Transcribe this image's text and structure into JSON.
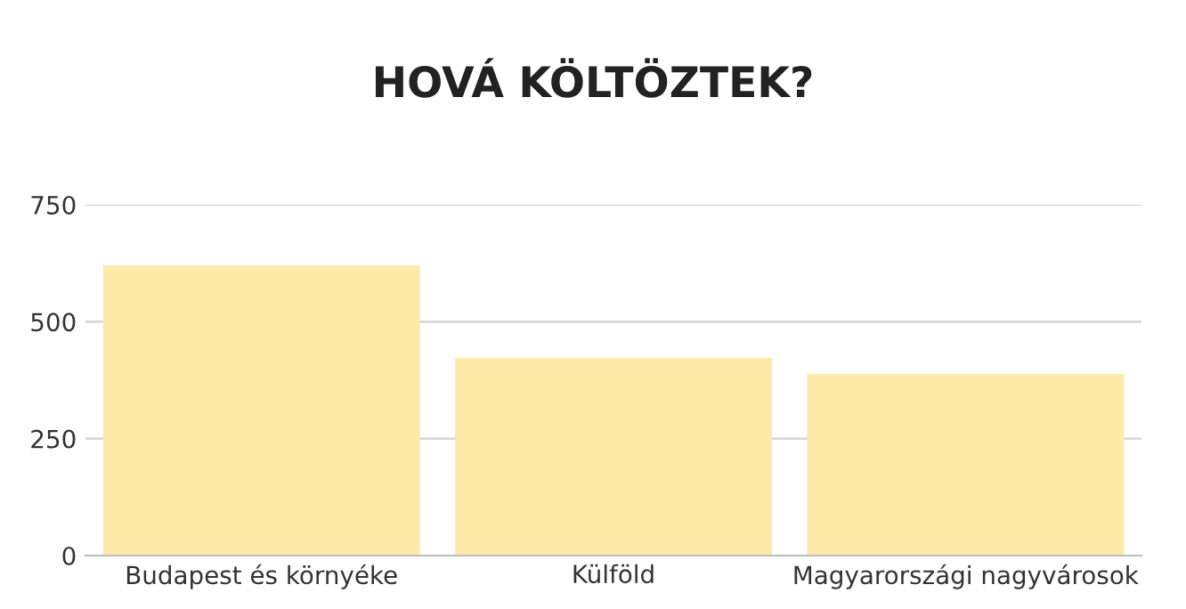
{
  "chart_data": {
    "type": "bar",
    "title": "HOVÁ KÖLTÖZTEK?",
    "categories": [
      "Budapest és környéke",
      "Külföld",
      "Magyarországi nagyvárosok"
    ],
    "values": [
      620,
      423,
      388
    ],
    "color": "#fde9a8",
    "ylim": [
      0,
      750
    ],
    "yticks": [
      0,
      250,
      500,
      750
    ],
    "grid": "y",
    "legend": false
  }
}
